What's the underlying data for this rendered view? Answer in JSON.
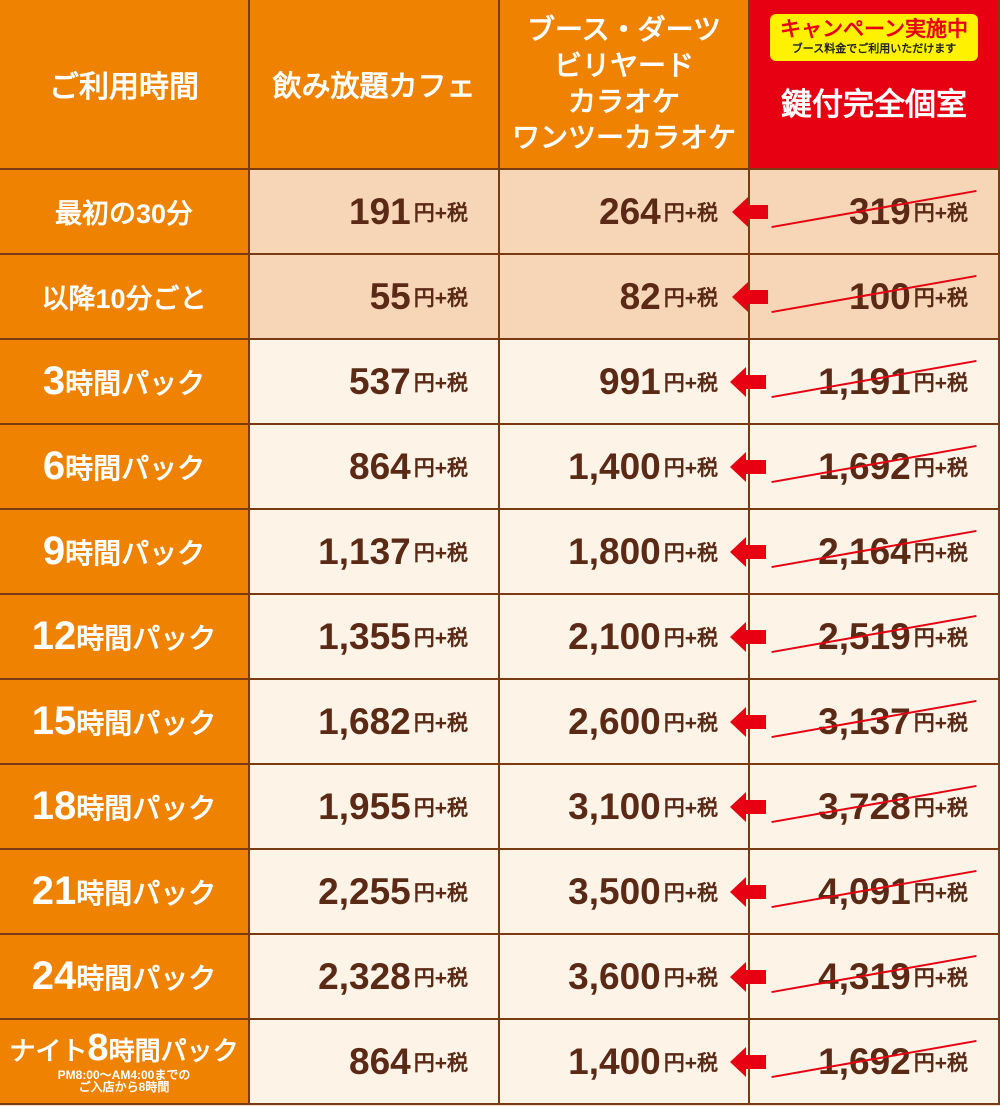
{
  "header": {
    "time": "ご利用時間",
    "cafe": "飲み放題カフェ",
    "multi": [
      "ブース・ダーツ",
      "ビリヤード",
      "カラオケ",
      "ワンツーカラオケ"
    ],
    "campaign_title": "キャンペーン実施中",
    "campaign_note": "ブース料金でご利用いただけます",
    "private": "鍵付完全個室"
  },
  "unit": "円+税",
  "rows": [
    {
      "label": "最初の30分",
      "cafe": "191",
      "booth": "264",
      "private": "319"
    },
    {
      "label": "以降10分ごと",
      "cafe": "55",
      "booth": "82",
      "private": "100"
    },
    {
      "label_num": "3",
      "label_rest": "時間パック",
      "cafe": "537",
      "booth": "991",
      "private": "1,191"
    },
    {
      "label_num": "6",
      "label_rest": "時間パック",
      "cafe": "864",
      "booth": "1,400",
      "private": "1,692"
    },
    {
      "label_num": "9",
      "label_rest": "時間パック",
      "cafe": "1,137",
      "booth": "1,800",
      "private": "2,164"
    },
    {
      "label_num": "12",
      "label_rest": "時間パック",
      "cafe": "1,355",
      "booth": "2,100",
      "private": "2,519"
    },
    {
      "label_num": "15",
      "label_rest": "時間パック",
      "cafe": "1,682",
      "booth": "2,600",
      "private": "3,137"
    },
    {
      "label_num": "18",
      "label_rest": "時間パック",
      "cafe": "1,955",
      "booth": "3,100",
      "private": "3,728"
    },
    {
      "label_num": "21",
      "label_rest": "時間パック",
      "cafe": "2,255",
      "booth": "3,500",
      "private": "4,091"
    },
    {
      "label_num": "24",
      "label_rest": "時間パック",
      "cafe": "2,328",
      "booth": "3,600",
      "private": "4,319"
    },
    {
      "label_pre": "ナイト",
      "label_num": "8",
      "label_rest": "時間パック",
      "label_note1": "PM8:00～AM4:00までの",
      "label_note2": "ご入店から8時間",
      "cafe": "864",
      "booth": "1,400",
      "private": "1,692"
    }
  ],
  "colors": {
    "orange": "#ef8200",
    "red": "#e60012",
    "brown": "#5a2a16",
    "peach": "#f6d6b6",
    "cream": "#fdf3e6"
  },
  "icons": {
    "arrow": "red-left-arrow-icon",
    "strike": "red-strikethrough-line"
  }
}
